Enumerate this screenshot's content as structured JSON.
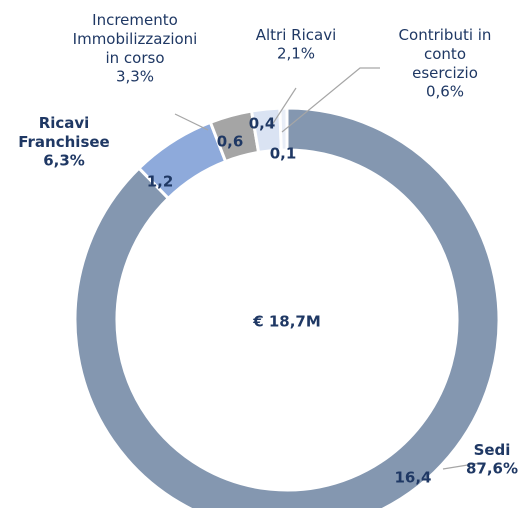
{
  "chart_data": {
    "type": "donut",
    "categories": [
      "Sedi",
      "Ricavi\nFranchisee",
      "Incremento\nImmobilizzazioni\nin corso",
      "Altri Ricavi",
      "Contributi in\nconto\nesercizio"
    ],
    "values": [
      16.4,
      1.2,
      0.6,
      0.4,
      0.1
    ],
    "value_labels": [
      "16,4",
      "1,2",
      "0,6",
      "0,4",
      "0,1"
    ],
    "percents": [
      87.6,
      6.3,
      3.3,
      2.1,
      0.6
    ],
    "percent_labels": [
      "87,6%",
      "6,3%",
      "3,3%",
      "2,1%",
      "0,6%"
    ],
    "colors": [
      "#8497b0",
      "#8eaadb",
      "#a5a5a5",
      "#dae3f3",
      "#e9eef7"
    ],
    "total": 18.7,
    "total_label": "€ 18,7M"
  }
}
